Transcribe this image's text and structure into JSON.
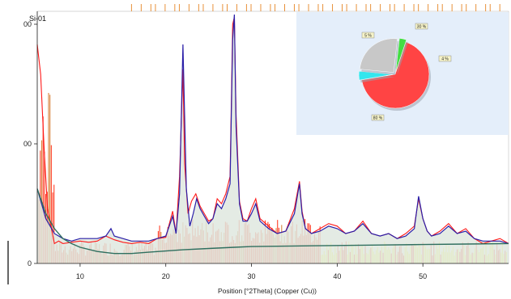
{
  "chart_data": {
    "type": "line",
    "sample_label": "Si-01",
    "xlabel": "Position [°2Theta] (Copper (Cu))",
    "ylabel": "",
    "xlim": [
      5,
      60
    ],
    "x_ticks": [
      10,
      20,
      30,
      40,
      50
    ],
    "y_tick_labels": [
      "0",
      "00",
      "00"
    ],
    "grid": false,
    "colors": {
      "observed": "#ff1a1a",
      "calculated": "#2b1fa8",
      "background": "#2f6f5f",
      "reference_bars": "#ff2a10",
      "reference_bars_secondary": "#ffff33",
      "reference_bars_tertiary": "#d4782a",
      "peak_markers": "#e8913a",
      "inset_panel": "#e4eefa"
    },
    "series": [
      {
        "role": "observed",
        "x": [
          5,
          5.4,
          5.8,
          6.2,
          6.6,
          7,
          7.5,
          8,
          9,
          10,
          11,
          12,
          13,
          14,
          15,
          16,
          17,
          18,
          19,
          20,
          20.8,
          21.2,
          21.6,
          22,
          22.2,
          22.6,
          23,
          23.5,
          24,
          24.5,
          25,
          25.5,
          26,
          26.5,
          27,
          27.5,
          27.8,
          28,
          28.2,
          28.6,
          29,
          29.5,
          30,
          30.5,
          31,
          32,
          33,
          34,
          35,
          35.6,
          35.9,
          36.3,
          37,
          38,
          39,
          40,
          41,
          42,
          43,
          44,
          45,
          46,
          47,
          48,
          49,
          49.5,
          50,
          50.5,
          51,
          52,
          53,
          54,
          55,
          56,
          57,
          58,
          59,
          60
        ],
        "y": [
          0.88,
          0.76,
          0.46,
          0.22,
          0.15,
          0.08,
          0.09,
          0.08,
          0.085,
          0.09,
          0.085,
          0.09,
          0.11,
          0.095,
          0.085,
          0.08,
          0.085,
          0.08,
          0.1,
          0.105,
          0.21,
          0.12,
          0.35,
          0.78,
          0.4,
          0.2,
          0.25,
          0.28,
          0.23,
          0.2,
          0.17,
          0.18,
          0.26,
          0.24,
          0.28,
          0.35,
          0.96,
          0.99,
          0.6,
          0.25,
          0.18,
          0.17,
          0.22,
          0.26,
          0.18,
          0.15,
          0.12,
          0.13,
          0.22,
          0.33,
          0.21,
          0.14,
          0.12,
          0.14,
          0.16,
          0.15,
          0.12,
          0.13,
          0.17,
          0.12,
          0.11,
          0.12,
          0.1,
          0.12,
          0.15,
          0.26,
          0.18,
          0.13,
          0.11,
          0.13,
          0.16,
          0.12,
          0.14,
          0.1,
          0.08,
          0.09,
          0.1,
          0.08
        ]
      },
      {
        "role": "calculated",
        "x": [
          5,
          6,
          7,
          8,
          9,
          10,
          11,
          12,
          13,
          13.6,
          14,
          15,
          16,
          17,
          18,
          19,
          20,
          20.8,
          21.2,
          21.6,
          22,
          22.4,
          22.8,
          23.2,
          23.6,
          24,
          24.5,
          25,
          25.5,
          26,
          26.5,
          27,
          27.5,
          27.8,
          28,
          28.2,
          28.6,
          29,
          29.5,
          30,
          30.5,
          31,
          32,
          33,
          34,
          35,
          35.6,
          35.9,
          36.3,
          37,
          38,
          39,
          40,
          41,
          42,
          43,
          44,
          45,
          46,
          47,
          48,
          49,
          49.5,
          50,
          50.5,
          51,
          52,
          53,
          54,
          55,
          56,
          57,
          58,
          59,
          60
        ],
        "y": [
          0.3,
          0.18,
          0.12,
          0.1,
          0.09,
          0.1,
          0.1,
          0.1,
          0.11,
          0.14,
          0.11,
          0.1,
          0.09,
          0.09,
          0.09,
          0.1,
          0.11,
          0.19,
          0.12,
          0.28,
          0.88,
          0.3,
          0.15,
          0.2,
          0.26,
          0.22,
          0.19,
          0.16,
          0.18,
          0.24,
          0.22,
          0.26,
          0.32,
          0.9,
          1.0,
          0.55,
          0.24,
          0.17,
          0.17,
          0.2,
          0.24,
          0.17,
          0.14,
          0.12,
          0.13,
          0.2,
          0.32,
          0.2,
          0.14,
          0.12,
          0.13,
          0.15,
          0.14,
          0.12,
          0.13,
          0.16,
          0.12,
          0.11,
          0.12,
          0.1,
          0.11,
          0.14,
          0.27,
          0.18,
          0.13,
          0.11,
          0.12,
          0.15,
          0.12,
          0.13,
          0.1,
          0.09,
          0.09,
          0.09,
          0.08
        ]
      },
      {
        "role": "background",
        "x": [
          5,
          6,
          7,
          8,
          9,
          10,
          12,
          14,
          16,
          18,
          20,
          22,
          25,
          28,
          30,
          35,
          40,
          45,
          50,
          55,
          60
        ],
        "y": [
          0.3,
          0.2,
          0.14,
          0.1,
          0.08,
          0.065,
          0.048,
          0.04,
          0.04,
          0.045,
          0.05,
          0.055,
          0.06,
          0.065,
          0.068,
          0.07,
          0.072,
          0.074,
          0.076,
          0.078,
          0.08
        ]
      }
    ],
    "inset_pie": {
      "type": "pie",
      "slices": [
        {
          "label": "80 %",
          "value": 80,
          "color": "#ff4444"
        },
        {
          "label": "5 %",
          "value": 5,
          "color": "#33e6ee"
        },
        {
          "label": "30 %",
          "value": 30,
          "color": "#c8c8c8"
        },
        {
          "label": "4 %",
          "value": 4,
          "color": "#44dd44"
        }
      ]
    }
  }
}
